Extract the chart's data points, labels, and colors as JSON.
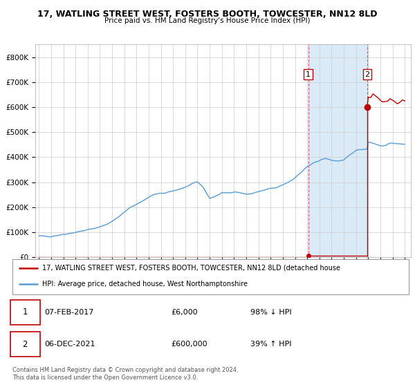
{
  "title1": "17, WATLING STREET WEST, FOSTERS BOOTH, TOWCESTER, NN12 8LD",
  "title2": "Price paid vs. HM Land Registry's House Price Index (HPI)",
  "ylim": [
    0,
    850000
  ],
  "yticks": [
    0,
    100000,
    200000,
    300000,
    400000,
    500000,
    600000,
    700000,
    800000
  ],
  "ytick_labels": [
    "£0",
    "£100K",
    "£200K",
    "£300K",
    "£400K",
    "£500K",
    "£600K",
    "£700K",
    "£800K"
  ],
  "xlim_start": 1994.7,
  "xlim_end": 2025.5,
  "hpi_color": "#5b9bd5",
  "sale_color": "#c00000",
  "background_color": "#ffffff",
  "grid_color": "#cccccc",
  "shade_color": "#daeaf7",
  "point1_x": 2017.09,
  "point1_y": 6000,
  "point2_x": 2021.92,
  "point2_y": 600000,
  "point1_label": "1",
  "point2_label": "2",
  "red_start_x": 1995.0,
  "legend_line1": "17, WATLING STREET WEST, FOSTERS BOOTH, TOWCESTER, NN12 8LD (detached house",
  "legend_line2": "HPI: Average price, detached house, West Northamptonshire",
  "table_row1": [
    "1",
    "07-FEB-2017",
    "£6,000",
    "98% ↓ HPI"
  ],
  "table_row2": [
    "2",
    "06-DEC-2021",
    "£600,000",
    "39% ↑ HPI"
  ],
  "footnote1": "Contains HM Land Registry data © Crown copyright and database right 2024.",
  "footnote2": "This data is licensed under the Open Government Licence v3.0.",
  "hpi_key_x": [
    1995.0,
    1996.0,
    1997.0,
    1998.0,
    1998.5,
    1999.5,
    2000.5,
    2001.5,
    2002.5,
    2003.5,
    2004.0,
    2004.5,
    2005.5,
    2006.0,
    2007.0,
    2008.0,
    2008.5,
    2009.0,
    2009.5,
    2010.0,
    2010.5,
    2011.0,
    2011.5,
    2012.0,
    2012.5,
    2013.0,
    2013.5,
    2014.0,
    2014.5,
    2015.0,
    2015.5,
    2016.0,
    2016.5,
    2017.0,
    2017.5,
    2018.0,
    2018.5,
    2019.0,
    2019.5,
    2020.0,
    2020.5,
    2021.0,
    2021.5,
    2021.92,
    2022.0,
    2022.5,
    2023.0,
    2023.5,
    2024.0,
    2024.5,
    2025.0
  ],
  "hpi_key_y": [
    85000,
    84000,
    92000,
    100000,
    105000,
    115000,
    130000,
    160000,
    200000,
    225000,
    240000,
    252000,
    258000,
    265000,
    280000,
    302000,
    278000,
    235000,
    245000,
    257000,
    258000,
    262000,
    258000,
    252000,
    255000,
    262000,
    268000,
    275000,
    278000,
    290000,
    302000,
    318000,
    340000,
    362000,
    375000,
    388000,
    395000,
    388000,
    385000,
    388000,
    408000,
    428000,
    432000,
    433000,
    462000,
    455000,
    445000,
    448000,
    458000,
    452000,
    453000
  ],
  "post_sale2_x": [
    2021.92,
    2022.0,
    2022.2,
    2022.4,
    2022.6,
    2022.8,
    2023.0,
    2023.2,
    2023.4,
    2023.6,
    2023.8,
    2024.0,
    2024.2,
    2024.4,
    2024.6,
    2024.8,
    2025.0
  ],
  "post_sale2_y": [
    600000,
    630000,
    645000,
    650000,
    648000,
    640000,
    630000,
    625000,
    622000,
    628000,
    632000,
    628000,
    622000,
    618000,
    622000,
    625000,
    622000
  ]
}
